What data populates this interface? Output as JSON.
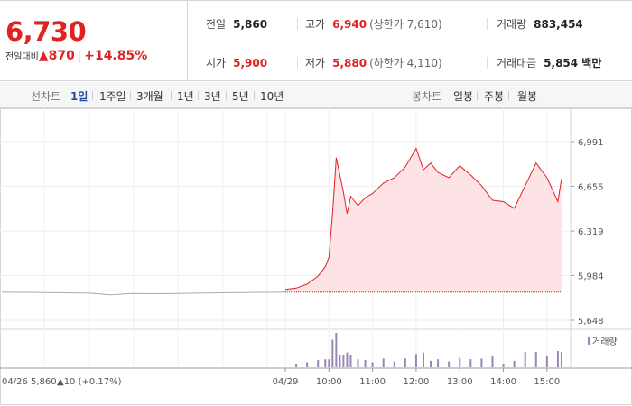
{
  "header": {
    "price": "6,730",
    "change_label": "전일대비",
    "change_arrow": "▲",
    "change_value": "870",
    "change_pct": "+14.85%",
    "stats": {
      "prev_close": {
        "label": "전일",
        "value": "5,860"
      },
      "high": {
        "label": "고가",
        "value": "6,940",
        "sub": "(상한가 7,610)"
      },
      "volume": {
        "label": "거래량",
        "value": "883,454"
      },
      "open": {
        "label": "시가",
        "value": "5,900"
      },
      "low": {
        "label": "저가",
        "value": "5,880",
        "sub": "(하한가 4,110)"
      },
      "amount": {
        "label": "거래대금",
        "value": "5,854 백만"
      }
    }
  },
  "tabs": {
    "line_label": "선차트",
    "line_periods": [
      "1일",
      "1주일",
      "3개월",
      "1년",
      "3년",
      "5년",
      "10년"
    ],
    "active_index": 0,
    "candle_label": "봉차트",
    "candle_periods": [
      "일봉",
      "주봉",
      "월봉"
    ]
  },
  "colors": {
    "up": "#e12222",
    "fill": "#fde3e5",
    "prev_line": "#aaaaaa",
    "volume": "#9a86b5",
    "active_tab": "#1f4ea5"
  },
  "chart_data": {
    "type": "line",
    "y_ticks": [
      "6,991",
      "6,655",
      "6,319",
      "5,984",
      "5,648"
    ],
    "ylim": [
      5648,
      6991
    ],
    "x_ticks": [
      "04/29",
      "10:00",
      "11:00",
      "12:00",
      "13:00",
      "14:00",
      "15:00"
    ],
    "prev_day_label": "04/26",
    "prev_day_close": "5,860",
    "prev_day_change": "▲10 (+0.17%)",
    "prev_day_series": [
      5860,
      5858,
      5856,
      5855,
      5852,
      5840,
      5850,
      5848,
      5850,
      5852,
      5855,
      5856,
      5858,
      5860
    ],
    "intraday_times": [
      "09:00",
      "09:15",
      "09:30",
      "09:45",
      "09:55",
      "10:00",
      "10:05",
      "10:10",
      "10:15",
      "10:20",
      "10:25",
      "10:30",
      "10:40",
      "10:50",
      "11:00",
      "11:15",
      "11:30",
      "11:45",
      "12:00",
      "12:10",
      "12:20",
      "12:30",
      "12:45",
      "13:00",
      "13:15",
      "13:30",
      "13:45",
      "14:00",
      "14:15",
      "14:30",
      "14:45",
      "15:00",
      "15:15",
      "15:20"
    ],
    "intraday_values": [
      5880,
      5890,
      5920,
      5980,
      6050,
      6120,
      6450,
      6870,
      6740,
      6610,
      6450,
      6580,
      6510,
      6570,
      6600,
      6680,
      6720,
      6800,
      6940,
      6780,
      6830,
      6760,
      6720,
      6810,
      6740,
      6660,
      6550,
      6540,
      6490,
      6660,
      6830,
      6720,
      6540,
      6710
    ],
    "volume_label": "거래량"
  }
}
